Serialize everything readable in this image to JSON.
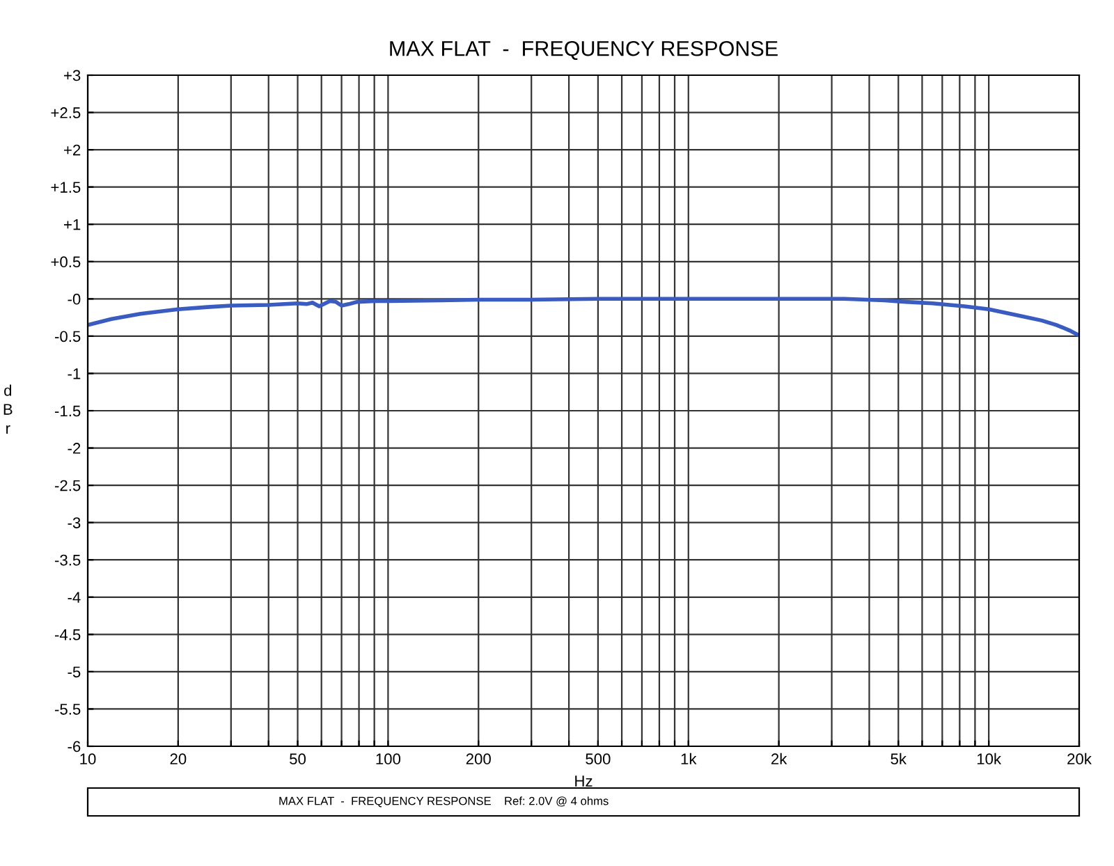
{
  "chart_data": {
    "type": "line",
    "title": "MAX FLAT  -  FREQUENCY RESPONSE",
    "xlabel": "Hz",
    "ylabel": "dBr",
    "log": "x",
    "grid": true,
    "legend": false,
    "marker": "none",
    "line_style": "solid",
    "xlim": [
      10,
      20000
    ],
    "ylim": [
      -6,
      3
    ],
    "xticks": [
      10,
      20,
      {
        "value": 30,
        "label": null
      },
      {
        "value": 40,
        "label": null
      },
      50,
      {
        "value": 60,
        "label": null
      },
      {
        "value": 70,
        "label": null
      },
      {
        "value": 80,
        "label": null
      },
      {
        "value": 90,
        "label": null
      },
      100,
      200,
      {
        "value": 300,
        "label": null
      },
      {
        "value": 400,
        "label": null
      },
      500,
      {
        "value": 600,
        "label": null
      },
      {
        "value": 700,
        "label": null
      },
      {
        "value": 800,
        "label": null
      },
      {
        "value": 900,
        "label": null
      },
      {
        "value": 1000,
        "label": "1k"
      },
      {
        "value": 2000,
        "label": "2k"
      },
      {
        "value": 3000,
        "label": null
      },
      {
        "value": 4000,
        "label": null
      },
      {
        "value": 5000,
        "label": "5k"
      },
      {
        "value": 6000,
        "label": null
      },
      {
        "value": 7000,
        "label": null
      },
      {
        "value": 8000,
        "label": null
      },
      {
        "value": 9000,
        "label": null
      },
      {
        "value": 10000,
        "label": "10k"
      },
      {
        "value": 20000,
        "label": "20k"
      }
    ],
    "yticks": [
      {
        "value": 3,
        "label": "+3"
      },
      {
        "value": 2.5,
        "label": "+2.5"
      },
      {
        "value": 2,
        "label": "+2"
      },
      {
        "value": 1.5,
        "label": "+1.5"
      },
      {
        "value": 1,
        "label": "+1"
      },
      {
        "value": 0.5,
        "label": "+0.5"
      },
      {
        "value": 0,
        "label": "-0"
      },
      -0.5,
      -1,
      -1.5,
      -2,
      -2.5,
      -3,
      -3.5,
      -4,
      -4.5,
      -5,
      -5.5,
      -6
    ],
    "series": [
      {
        "color": "#3a5bbf",
        "x": [
          10,
          12,
          15,
          20,
          25,
          30,
          40,
          50,
          53.5,
          56,
          59,
          64,
          67,
          70,
          74,
          79,
          90,
          100,
          150,
          200,
          300,
          500,
          1000,
          2000,
          3300,
          4500,
          5300,
          6500,
          8300,
          10000,
          12800,
          15000,
          16800,
          18500,
          20000
        ],
        "values": [
          -0.35,
          -0.27,
          -0.2,
          -0.14,
          -0.11,
          -0.09,
          -0.08,
          -0.06,
          -0.07,
          -0.05,
          -0.1,
          -0.03,
          -0.04,
          -0.09,
          -0.07,
          -0.04,
          -0.03,
          -0.03,
          -0.02,
          -0.01,
          -0.01,
          0,
          0,
          0,
          0,
          -0.02,
          -0.04,
          -0.06,
          -0.1,
          -0.14,
          -0.23,
          -0.29,
          -0.35,
          -0.42,
          -0.49
        ]
      }
    ],
    "annotations": [
      "MAX FLAT  -  FREQUENCY RESPONSE",
      "Ref: 2.0V @ 4 ohms"
    ]
  }
}
